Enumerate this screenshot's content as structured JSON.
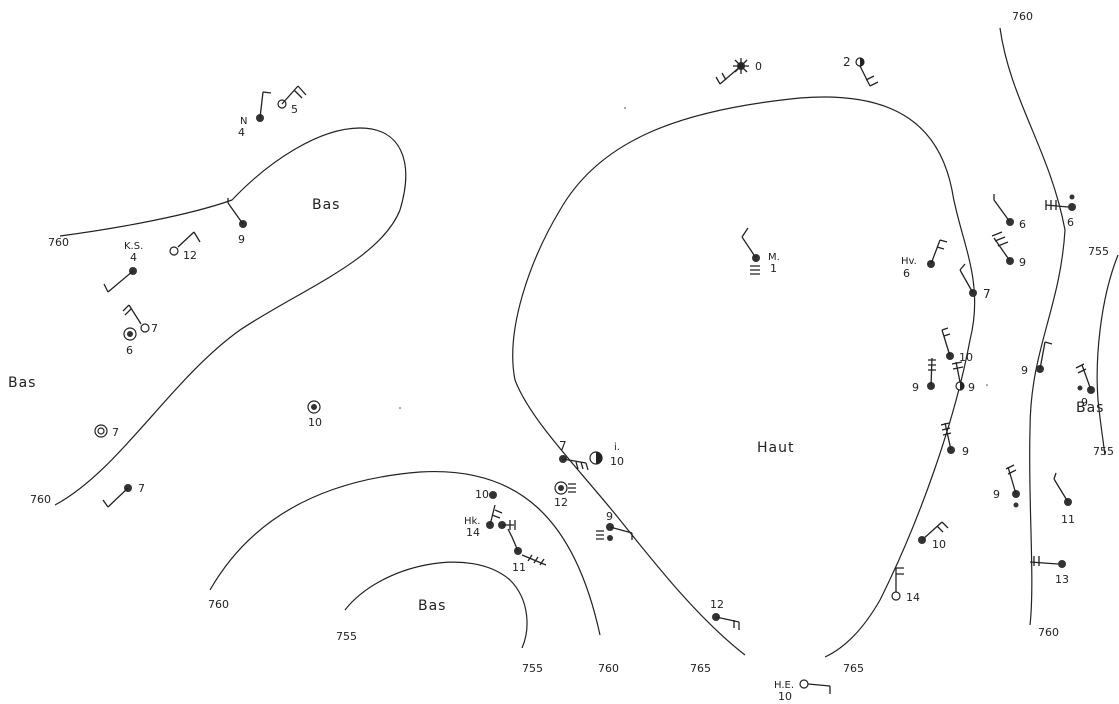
{
  "isobars": {
    "l760_top": "760",
    "l760_left": "760",
    "l760_left_low": "760",
    "l760_bottom": "760",
    "l760_bottom_center": "760",
    "l755_bottom_a": "755",
    "l755_bottom_b": "755",
    "l765_a": "765",
    "l765_b": "765",
    "l760_right": "760",
    "l755_right_top": "755",
    "l755_right_bottom": "755"
  },
  "regions": {
    "bas_top": "Bas",
    "bas_left": "Bas",
    "bas_bottom": "Bas",
    "bas_right": "Bas",
    "haut": "Haut"
  },
  "stations": {
    "N": {
      "name": "N",
      "value": "4"
    },
    "KS": {
      "name": "K.S.",
      "value": "4"
    },
    "M": {
      "name": "M.",
      "value": "1"
    },
    "Hv": {
      "name": "Hv.",
      "value": "6"
    },
    "Hk": {
      "name": "Hk.",
      "value": "14"
    },
    "HE": {
      "name": "H.E.",
      "value": "10"
    },
    "i": {
      "name": "i.",
      "value": "10"
    }
  },
  "values": {
    "v5": "5",
    "v12a": "12",
    "v9a": "9",
    "v7a": "7",
    "v6a": "6",
    "v7b": "7",
    "v10a": "10",
    "v7c": "7",
    "v0": "0",
    "v2": "2",
    "v7d": "7",
    "v12b": "12",
    "v10b": "10",
    "v11a": "11",
    "v9b": "9",
    "v12c": "12",
    "v6b": "6",
    "v6c": "6",
    "v9c": "9",
    "v7e": "7",
    "v10c": "10",
    "v9d": "9",
    "v9e": "9",
    "v9f": "9",
    "v9g": "9",
    "v9h": "9",
    "v10d": "10",
    "v14": "14",
    "v9i": "9",
    "v11b": "11",
    "v13": "13"
  }
}
